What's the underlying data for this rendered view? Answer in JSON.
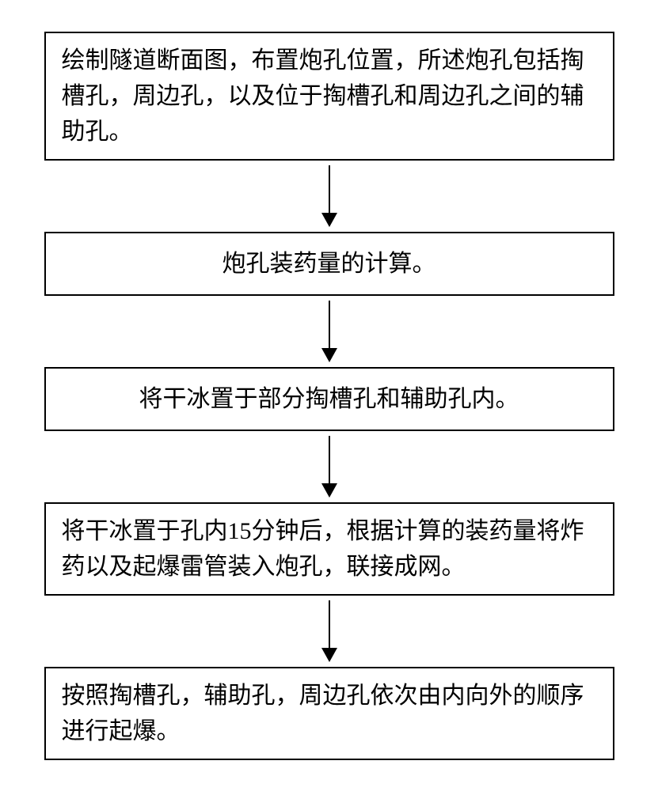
{
  "flowchart": {
    "type": "flowchart",
    "direction": "top-to-bottom",
    "box_border_color": "#000000",
    "box_border_width": 2,
    "box_background": "#ffffff",
    "text_color": "#000000",
    "font_size": 30,
    "font_family": "SimSun",
    "arrow_color": "#000000",
    "arrow_line_width": 2,
    "arrow_head_width": 20,
    "arrow_head_height": 18,
    "container_width": 720,
    "steps": [
      {
        "text": "绘制隧道断面图，布置炮孔位置，所述炮孔包括掏槽孔，周边孔，以及位于掏槽孔和周边孔之间的辅助孔。",
        "lines": 3,
        "align": "left"
      },
      {
        "text": "炮孔装药量的计算。",
        "lines": 1,
        "align": "center"
      },
      {
        "text": "将干冰置于部分掏槽孔和辅助孔内。",
        "lines": 1,
        "align": "center"
      },
      {
        "text": "将干冰置于孔内15分钟后，根据计算的装药量将炸药以及起爆雷管装入炮孔，联接成网。",
        "lines": 2,
        "align": "left"
      },
      {
        "text": "按照掏槽孔，辅助孔，周边孔依次由内向外的顺序进行起爆。",
        "lines": 2,
        "align": "left"
      }
    ]
  }
}
